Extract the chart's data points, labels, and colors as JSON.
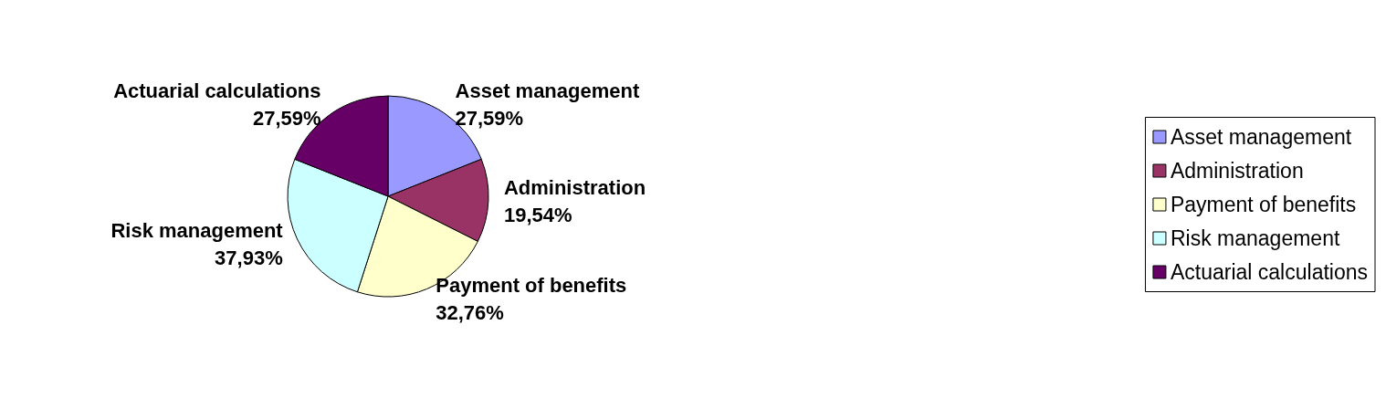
{
  "chart_data": {
    "type": "pie",
    "categories": [
      "Asset management",
      "Administration",
      "Payment of benefits",
      "Risk management",
      "Actuarial calculations"
    ],
    "values": [
      27.59,
      19.54,
      32.76,
      37.93,
      27.59
    ],
    "value_labels": [
      "27,59%",
      "19,54%",
      "32,76%",
      "37,93%",
      "27,59%"
    ],
    "colors": [
      "#9999ff",
      "#993366",
      "#ffffcc",
      "#ccffff",
      "#660066"
    ],
    "legend": "right"
  }
}
